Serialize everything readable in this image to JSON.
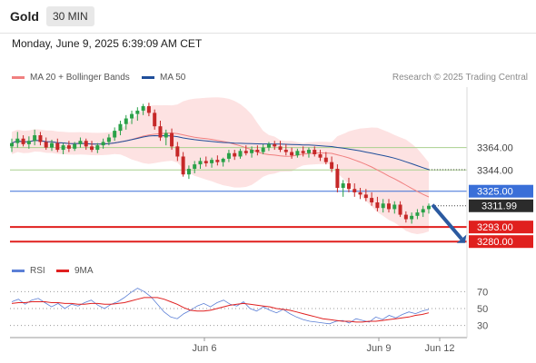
{
  "header": {
    "symbol": "Gold",
    "timeframe": "30 MIN",
    "timestamp": "Monday, June 9, 2025 6:39:09 AM CET"
  },
  "legend": {
    "ma20": {
      "label": "MA 20 + Bollinger Bands",
      "color": "#f08080"
    },
    "ma50": {
      "label": "MA 50",
      "color": "#1f4e9a"
    },
    "rsi": {
      "label": "RSI",
      "color": "#5b7fd6"
    },
    "rsi_ma": {
      "label": "9MA",
      "color": "#e02020"
    }
  },
  "credit": "Research © 2025 Trading Central",
  "colors": {
    "up_candle": "#2aa148",
    "down_candle": "#c62828",
    "band_fill": "#fde2e2",
    "support_line": "#e0201e",
    "resistance_line": "#a9d18e",
    "pivot_line": "#3a6fd8",
    "price_tag": "#2b2b2b",
    "arrow": "#2b5aa0"
  },
  "chart_data": [
    {
      "type": "candlestick",
      "title": "Gold",
      "timeframe": "30 MIN",
      "x_tick_labels": [
        "Jun 6",
        "Jun 9",
        "Jun 12"
      ],
      "y_range": [
        3268,
        3418
      ],
      "current_price": 3311.99,
      "levels": [
        {
          "value": 3364.0,
          "label": "3364.00",
          "kind": "resistance"
        },
        {
          "value": 3344.0,
          "label": "3344.00",
          "kind": "resistance"
        },
        {
          "value": 3325.0,
          "label": "3325.00",
          "kind": "pivot"
        },
        {
          "value": 3293.0,
          "label": "3293.00",
          "kind": "support"
        },
        {
          "value": 3280.0,
          "label": "3280.00",
          "kind": "support"
        }
      ],
      "current_label": "3311.99",
      "forecast": {
        "from": 3312,
        "to": 3280,
        "direction": "down"
      },
      "candles": [
        {
          "o": 3365,
          "h": 3372,
          "l": 3360,
          "c": 3368
        },
        {
          "o": 3368,
          "h": 3378,
          "l": 3364,
          "c": 3372
        },
        {
          "o": 3372,
          "h": 3375,
          "l": 3365,
          "c": 3367
        },
        {
          "o": 3367,
          "h": 3374,
          "l": 3363,
          "c": 3370
        },
        {
          "o": 3370,
          "h": 3380,
          "l": 3366,
          "c": 3375
        },
        {
          "o": 3375,
          "h": 3378,
          "l": 3366,
          "c": 3369
        },
        {
          "o": 3369,
          "h": 3373,
          "l": 3362,
          "c": 3364
        },
        {
          "o": 3364,
          "h": 3371,
          "l": 3361,
          "c": 3368
        },
        {
          "o": 3368,
          "h": 3372,
          "l": 3360,
          "c": 3362
        },
        {
          "o": 3362,
          "h": 3368,
          "l": 3358,
          "c": 3366
        },
        {
          "o": 3366,
          "h": 3370,
          "l": 3360,
          "c": 3363
        },
        {
          "o": 3363,
          "h": 3369,
          "l": 3361,
          "c": 3367
        },
        {
          "o": 3367,
          "h": 3373,
          "l": 3364,
          "c": 3370
        },
        {
          "o": 3370,
          "h": 3372,
          "l": 3362,
          "c": 3365
        },
        {
          "o": 3365,
          "h": 3370,
          "l": 3360,
          "c": 3362
        },
        {
          "o": 3362,
          "h": 3368,
          "l": 3359,
          "c": 3366
        },
        {
          "o": 3366,
          "h": 3372,
          "l": 3363,
          "c": 3369
        },
        {
          "o": 3369,
          "h": 3376,
          "l": 3366,
          "c": 3373
        },
        {
          "o": 3373,
          "h": 3382,
          "l": 3370,
          "c": 3379
        },
        {
          "o": 3379,
          "h": 3388,
          "l": 3375,
          "c": 3385
        },
        {
          "o": 3385,
          "h": 3393,
          "l": 3380,
          "c": 3390
        },
        {
          "o": 3390,
          "h": 3397,
          "l": 3385,
          "c": 3394
        },
        {
          "o": 3394,
          "h": 3400,
          "l": 3388,
          "c": 3397
        },
        {
          "o": 3397,
          "h": 3403,
          "l": 3393,
          "c": 3401
        },
        {
          "o": 3401,
          "h": 3404,
          "l": 3392,
          "c": 3395
        },
        {
          "o": 3395,
          "h": 3398,
          "l": 3380,
          "c": 3383
        },
        {
          "o": 3383,
          "h": 3388,
          "l": 3370,
          "c": 3373
        },
        {
          "o": 3373,
          "h": 3380,
          "l": 3366,
          "c": 3377
        },
        {
          "o": 3377,
          "h": 3381,
          "l": 3362,
          "c": 3365
        },
        {
          "o": 3365,
          "h": 3369,
          "l": 3352,
          "c": 3356
        },
        {
          "o": 3356,
          "h": 3360,
          "l": 3338,
          "c": 3340
        },
        {
          "o": 3340,
          "h": 3348,
          "l": 3336,
          "c": 3345
        },
        {
          "o": 3345,
          "h": 3352,
          "l": 3341,
          "c": 3349
        },
        {
          "o": 3349,
          "h": 3355,
          "l": 3345,
          "c": 3352
        },
        {
          "o": 3352,
          "h": 3356,
          "l": 3347,
          "c": 3350
        },
        {
          "o": 3350,
          "h": 3355,
          "l": 3346,
          "c": 3353
        },
        {
          "o": 3353,
          "h": 3357,
          "l": 3348,
          "c": 3351
        },
        {
          "o": 3351,
          "h": 3355,
          "l": 3347,
          "c": 3354
        },
        {
          "o": 3354,
          "h": 3362,
          "l": 3351,
          "c": 3359
        },
        {
          "o": 3359,
          "h": 3362,
          "l": 3353,
          "c": 3356
        },
        {
          "o": 3356,
          "h": 3363,
          "l": 3354,
          "c": 3361
        },
        {
          "o": 3361,
          "h": 3366,
          "l": 3357,
          "c": 3359
        },
        {
          "o": 3359,
          "h": 3365,
          "l": 3355,
          "c": 3362
        },
        {
          "o": 3362,
          "h": 3366,
          "l": 3357,
          "c": 3360
        },
        {
          "o": 3360,
          "h": 3367,
          "l": 3358,
          "c": 3364
        },
        {
          "o": 3364,
          "h": 3369,
          "l": 3361,
          "c": 3367
        },
        {
          "o": 3367,
          "h": 3370,
          "l": 3362,
          "c": 3365
        },
        {
          "o": 3365,
          "h": 3370,
          "l": 3360,
          "c": 3362
        },
        {
          "o": 3362,
          "h": 3367,
          "l": 3357,
          "c": 3360
        },
        {
          "o": 3360,
          "h": 3364,
          "l": 3354,
          "c": 3357
        },
        {
          "o": 3357,
          "h": 3363,
          "l": 3355,
          "c": 3361
        },
        {
          "o": 3361,
          "h": 3365,
          "l": 3356,
          "c": 3359
        },
        {
          "o": 3359,
          "h": 3364,
          "l": 3355,
          "c": 3362
        },
        {
          "o": 3362,
          "h": 3365,
          "l": 3356,
          "c": 3358
        },
        {
          "o": 3358,
          "h": 3362,
          "l": 3352,
          "c": 3355
        },
        {
          "o": 3355,
          "h": 3360,
          "l": 3349,
          "c": 3351
        },
        {
          "o": 3351,
          "h": 3356,
          "l": 3342,
          "c": 3345
        },
        {
          "o": 3345,
          "h": 3349,
          "l": 3324,
          "c": 3328
        },
        {
          "o": 3328,
          "h": 3335,
          "l": 3320,
          "c": 3332
        },
        {
          "o": 3332,
          "h": 3337,
          "l": 3324,
          "c": 3327
        },
        {
          "o": 3327,
          "h": 3332,
          "l": 3320,
          "c": 3324
        },
        {
          "o": 3324,
          "h": 3328,
          "l": 3318,
          "c": 3322
        },
        {
          "o": 3322,
          "h": 3327,
          "l": 3316,
          "c": 3319
        },
        {
          "o": 3319,
          "h": 3324,
          "l": 3312,
          "c": 3315
        },
        {
          "o": 3315,
          "h": 3320,
          "l": 3307,
          "c": 3310
        },
        {
          "o": 3310,
          "h": 3318,
          "l": 3306,
          "c": 3314
        },
        {
          "o": 3314,
          "h": 3318,
          "l": 3306,
          "c": 3309
        },
        {
          "o": 3309,
          "h": 3316,
          "l": 3305,
          "c": 3313
        },
        {
          "o": 3313,
          "h": 3316,
          "l": 3302,
          "c": 3304
        },
        {
          "o": 3304,
          "h": 3307,
          "l": 3297,
          "c": 3300
        },
        {
          "o": 3300,
          "h": 3306,
          "l": 3296,
          "c": 3303
        },
        {
          "o": 3303,
          "h": 3309,
          "l": 3300,
          "c": 3306
        },
        {
          "o": 3306,
          "h": 3312,
          "l": 3302,
          "c": 3309
        },
        {
          "o": 3309,
          "h": 3314,
          "l": 3305,
          "c": 3312
        }
      ]
    },
    {
      "type": "line",
      "title": "RSI",
      "x_tick_labels": [
        "Jun 6",
        "Jun 9",
        "Jun 12"
      ],
      "y_ticks": [
        70,
        50,
        30
      ],
      "y_range": [
        20,
        80
      ],
      "series": [
        {
          "name": "RSI",
          "values": [
            58,
            61,
            55,
            60,
            62,
            57,
            52,
            56,
            50,
            55,
            53,
            57,
            60,
            54,
            50,
            55,
            58,
            63,
            69,
            74,
            70,
            64,
            55,
            46,
            40,
            38,
            44,
            48,
            53,
            56,
            52,
            57,
            60,
            55,
            53,
            58,
            50,
            47,
            52,
            48,
            45,
            49,
            44,
            40,
            37,
            35,
            34,
            33,
            32,
            35,
            36,
            33,
            38,
            36,
            34,
            40,
            37,
            42,
            39,
            43,
            46,
            44,
            47,
            49
          ]
        },
        {
          "name": "9MA",
          "values": [
            56,
            57,
            57,
            58,
            58,
            58,
            57,
            57,
            56,
            56,
            55,
            55,
            56,
            56,
            55,
            55,
            56,
            57,
            59,
            61,
            63,
            63,
            63,
            61,
            58,
            55,
            51,
            48,
            47,
            47,
            48,
            50,
            52,
            54,
            55,
            56,
            55,
            54,
            53,
            52,
            50,
            49,
            48,
            46,
            44,
            42,
            40,
            38,
            37,
            36,
            35,
            35,
            34,
            34,
            35,
            35,
            36,
            37,
            38,
            39,
            40,
            42,
            43,
            45
          ]
        }
      ]
    }
  ]
}
